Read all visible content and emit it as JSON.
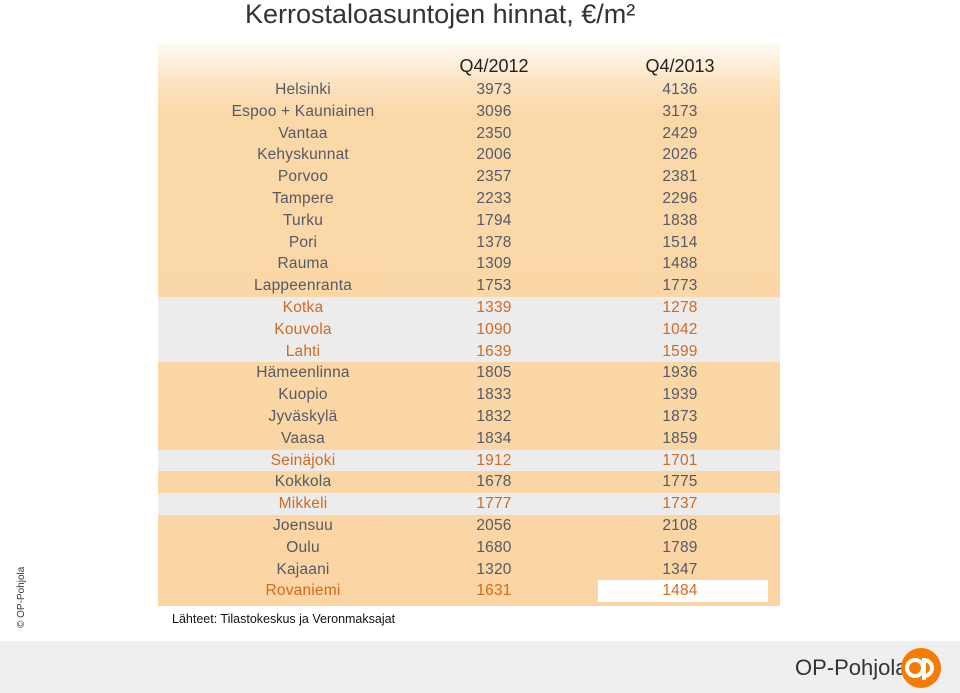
{
  "title": "Kerrostaloasuntojen hinnat, €/m²",
  "columns": [
    "Q4/2012",
    "Q4/2013"
  ],
  "rows": [
    {
      "city": "Helsinki",
      "q4_2012": "3973",
      "q4_2013": "4136",
      "style": "dark"
    },
    {
      "city": "Espoo + Kauniainen",
      "q4_2012": "3096",
      "q4_2013": "3173",
      "style": "dark"
    },
    {
      "city": "Vantaa",
      "q4_2012": "2350",
      "q4_2013": "2429",
      "style": "dark"
    },
    {
      "city": "Kehyskunnat",
      "q4_2012": "2006",
      "q4_2013": "2026",
      "style": "dark"
    },
    {
      "city": "Porvoo",
      "q4_2012": "2357",
      "q4_2013": "2381",
      "style": "dark"
    },
    {
      "city": "Tampere",
      "q4_2012": "2233",
      "q4_2013": "2296",
      "style": "dark"
    },
    {
      "city": "Turku",
      "q4_2012": "1794",
      "q4_2013": "1838",
      "style": "dark"
    },
    {
      "city": "Pori",
      "q4_2012": "1378",
      "q4_2013": "1514",
      "style": "dark"
    },
    {
      "city": "Rauma",
      "q4_2012": "1309",
      "q4_2013": "1488",
      "style": "dark"
    },
    {
      "city": "Lappeenranta",
      "q4_2012": "1753",
      "q4_2013": "1773",
      "style": "dark"
    },
    {
      "city": "Kotka",
      "q4_2012": "1339",
      "q4_2013": "1278",
      "style": "orange",
      "grey": true
    },
    {
      "city": "Kouvola",
      "q4_2012": "1090",
      "q4_2013": "1042",
      "style": "orange",
      "grey": true
    },
    {
      "city": "Lahti",
      "q4_2012": "1639",
      "q4_2013": "1599",
      "style": "orange",
      "grey": true
    },
    {
      "city": "Hämeenlinna",
      "q4_2012": "1805",
      "q4_2013": "1936",
      "style": "dark"
    },
    {
      "city": "Kuopio",
      "q4_2012": "1833",
      "q4_2013": "1939",
      "style": "dark"
    },
    {
      "city": "Jyväskylä",
      "q4_2012": "1832",
      "q4_2013": "1873",
      "style": "dark"
    },
    {
      "city": "Vaasa",
      "q4_2012": "1834",
      "q4_2013": "1859",
      "style": "dark"
    },
    {
      "city": "Seinäjoki",
      "q4_2012": "1912",
      "q4_2013": "1701",
      "style": "orange",
      "grey": true
    },
    {
      "city": "Kokkola",
      "q4_2012": "1678",
      "q4_2013": "1775",
      "style": "dark"
    },
    {
      "city": "Mikkeli",
      "q4_2012": "1777",
      "q4_2013": "1737",
      "style": "orange",
      "grey": true
    },
    {
      "city": "Joensuu",
      "q4_2012": "2056",
      "q4_2013": "2108",
      "style": "dark"
    },
    {
      "city": "Oulu",
      "q4_2012": "1680",
      "q4_2013": "1789",
      "style": "dark"
    },
    {
      "city": "Kajaani",
      "q4_2012": "1320",
      "q4_2013": "1347",
      "style": "dark"
    },
    {
      "city": "Rovaniemi",
      "q4_2012": "1631",
      "q4_2013": "1484",
      "style": "orange",
      "grey": true
    }
  ],
  "sources": "Lähteet: Tilastokeskus ja Veronmaksajat",
  "copyright": "© OP-Pohjola",
  "logo_text": "OP-Pohjola",
  "colors": {
    "table_bg": "#fbd6a4",
    "decline_row_bg": "#ececec",
    "decline_text": "#d4691f",
    "logo_orange": "#f57c00"
  }
}
